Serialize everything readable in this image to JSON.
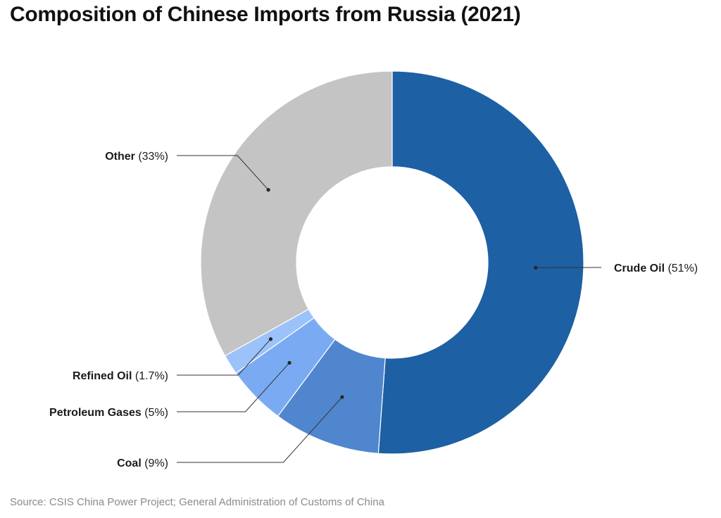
{
  "title": "Composition of Chinese Imports from Russia (2021)",
  "source": "Source: CSIS China Power Project; General Administration of Customs of China",
  "chart_data": {
    "type": "pie",
    "variant": "donut",
    "title": "Composition of Chinese Imports from Russia (2021)",
    "slices": [
      {
        "name": "Crude Oil",
        "pct_label": "(51%)",
        "value": 51,
        "color": "#1d60a3"
      },
      {
        "name": "Coal",
        "pct_label": "(9%)",
        "value": 9,
        "color": "#4f86ce"
      },
      {
        "name": "Petroleum Gases",
        "pct_label": "(5%)",
        "value": 5,
        "color": "#7aabf2"
      },
      {
        "name": "Refined Oil",
        "pct_label": "(1.7%)",
        "value": 1.7,
        "color": "#9cc2fa"
      },
      {
        "name": "Other",
        "pct_label": "(33%)",
        "value": 33,
        "color": "#c4c4c4"
      }
    ],
    "legend": "none",
    "labels": "outside with leader lines"
  }
}
